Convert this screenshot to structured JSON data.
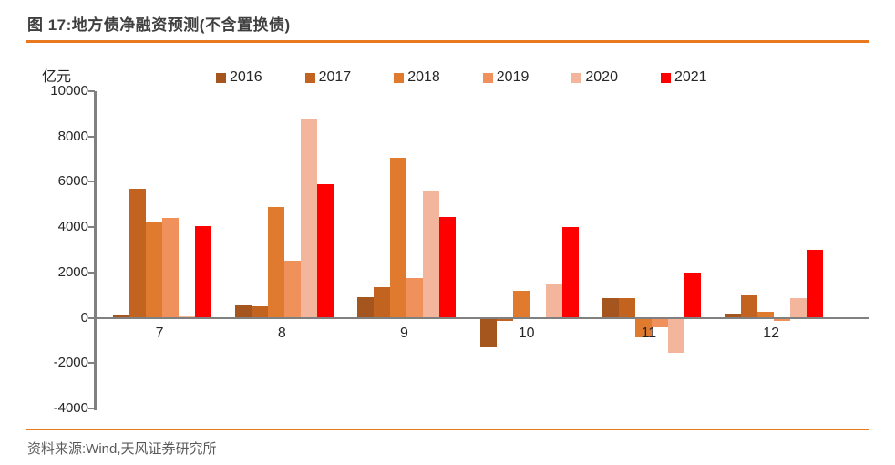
{
  "header": {
    "title": "图 17:地方债净融资预测(不含置换债)"
  },
  "footer": {
    "source": "资料来源:Wind,天风证券研究所"
  },
  "colors": {
    "accent_rule": "#e8791e",
    "axis": "#808080",
    "title_text": "#3f3f3f",
    "tick_text": "#262626",
    "source_text": "#595959"
  },
  "chart_data": {
    "type": "bar",
    "title": "图 17:地方债净融资预测(不含置换债)",
    "unit_label": "亿元",
    "xlabel": "",
    "ylabel": "亿元",
    "categories": [
      "7",
      "8",
      "9",
      "10",
      "11",
      "12"
    ],
    "series": [
      {
        "name": "2016",
        "color": "#a5551e",
        "values": [
          100,
          550,
          900,
          -1300,
          850,
          180
        ]
      },
      {
        "name": "2017",
        "color": "#c2631f",
        "values": [
          5700,
          500,
          1350,
          -150,
          880,
          1000
        ]
      },
      {
        "name": "2018",
        "color": "#df7a2e",
        "values": [
          4250,
          4900,
          7050,
          1200,
          -850,
          250
        ]
      },
      {
        "name": "2019",
        "color": "#f0915c",
        "values": [
          4400,
          2500,
          1750,
          0,
          -400,
          -120
        ]
      },
      {
        "name": "2020",
        "color": "#f3b69d",
        "values": [
          60,
          8800,
          5600,
          1500,
          -1550,
          850
        ]
      },
      {
        "name": "2021",
        "color": "#ff0000",
        "values": [
          4050,
          5900,
          4450,
          4000,
          2000,
          3000
        ]
      }
    ],
    "ylim": [
      -4000,
      10000
    ],
    "yticks": [
      10000,
      8000,
      6000,
      4000,
      2000,
      0,
      -2000,
      -4000
    ],
    "legend_position": "top",
    "grid": false
  }
}
